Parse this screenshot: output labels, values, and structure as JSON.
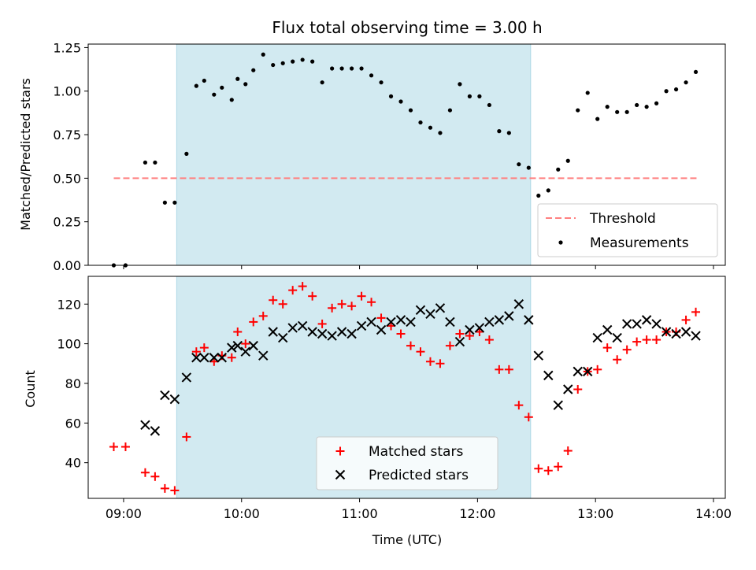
{
  "title": "Flux total observing time = 3.00 h",
  "colors": {
    "shade": "#add8e6",
    "threshold": "#ff8080",
    "measurement": "#000000",
    "matched": "#ff0000",
    "predicted": "#000000"
  },
  "chart_data": [
    {
      "type": "scatter",
      "id": "top",
      "ylabel": "Matched/Predicted stars",
      "xlabel": "",
      "xlim": [
        "08:42",
        "14:06"
      ],
      "ylim": [
        0,
        1.27
      ],
      "x_ticks": [
        "09:00",
        "10:00",
        "11:00",
        "12:00",
        "13:00",
        "14:00"
      ],
      "y_ticks": [
        "0.00",
        "0.25",
        "0.50",
        "0.75",
        "1.00",
        "1.25"
      ],
      "shaded_region": [
        "09:27",
        "12:27"
      ],
      "legend": {
        "position": "lower right",
        "entries": [
          "Threshold",
          "Measurements"
        ]
      },
      "threshold": {
        "name": "Threshold",
        "value": 0.5,
        "x_range": [
          "08:55",
          "13:52"
        ]
      },
      "series": [
        {
          "name": "Measurements",
          "marker": "dot",
          "x": [
            "08:55",
            "09:01",
            "09:11",
            "09:16",
            "09:21",
            "09:26",
            "09:32",
            "09:37",
            "09:41",
            "09:46",
            "09:50",
            "09:55",
            "09:58",
            "10:02",
            "10:06",
            "10:11",
            "10:16",
            "10:21",
            "10:26",
            "10:31",
            "10:36",
            "10:41",
            "10:46",
            "10:51",
            "10:56",
            "11:01",
            "11:06",
            "11:11",
            "11:16",
            "11:21",
            "11:26",
            "11:31",
            "11:36",
            "11:41",
            "11:46",
            "11:51",
            "11:56",
            "12:01",
            "12:06",
            "12:11",
            "12:16",
            "12:21",
            "12:26",
            "12:31",
            "12:36",
            "12:41",
            "12:46",
            "12:51",
            "12:56",
            "13:01",
            "13:06",
            "13:11",
            "13:16",
            "13:21",
            "13:26",
            "13:31",
            "13:36",
            "13:41",
            "13:46",
            "13:51"
          ],
          "values": [
            0.0,
            0.0,
            0.59,
            0.59,
            0.36,
            0.36,
            0.64,
            1.03,
            1.06,
            0.98,
            1.02,
            0.95,
            1.07,
            1.04,
            1.12,
            1.21,
            1.15,
            1.16,
            1.17,
            1.18,
            1.17,
            1.05,
            1.13,
            1.13,
            1.13,
            1.13,
            1.09,
            1.05,
            0.97,
            0.94,
            0.89,
            0.82,
            0.79,
            0.76,
            0.89,
            1.04,
            0.97,
            0.97,
            0.92,
            0.77,
            0.76,
            0.58,
            0.56,
            0.4,
            0.43,
            0.55,
            0.6,
            0.89,
            0.99,
            0.84,
            0.91,
            0.88,
            0.88,
            0.92,
            0.91,
            0.93,
            1.0,
            1.01,
            1.05,
            1.11
          ]
        }
      ]
    },
    {
      "type": "scatter",
      "id": "bottom",
      "ylabel": "Count",
      "xlabel": "Time (UTC)",
      "xlim": [
        "08:42",
        "14:06"
      ],
      "ylim": [
        22,
        134
      ],
      "x_ticks": [
        "09:00",
        "10:00",
        "11:00",
        "12:00",
        "13:00",
        "14:00"
      ],
      "y_ticks": [
        "40",
        "60",
        "80",
        "100",
        "120"
      ],
      "shaded_region": [
        "09:27",
        "12:27"
      ],
      "legend": {
        "position": "lower center",
        "entries": [
          "Matched stars",
          "Predicted stars"
        ]
      },
      "series": [
        {
          "name": "Matched stars",
          "marker": "plus",
          "x": [
            "08:55",
            "09:01",
            "09:11",
            "09:16",
            "09:21",
            "09:26",
            "09:32",
            "09:37",
            "09:41",
            "09:46",
            "09:50",
            "09:55",
            "09:58",
            "10:02",
            "10:06",
            "10:11",
            "10:16",
            "10:21",
            "10:26",
            "10:31",
            "10:36",
            "10:41",
            "10:46",
            "10:51",
            "10:56",
            "11:01",
            "11:06",
            "11:11",
            "11:16",
            "11:21",
            "11:26",
            "11:31",
            "11:36",
            "11:41",
            "11:46",
            "11:51",
            "11:56",
            "12:01",
            "12:06",
            "12:11",
            "12:16",
            "12:21",
            "12:26",
            "12:31",
            "12:36",
            "12:41",
            "12:46",
            "12:51",
            "12:56",
            "13:01",
            "13:06",
            "13:11",
            "13:16",
            "13:21",
            "13:26",
            "13:31",
            "13:36",
            "13:41",
            "13:46",
            "13:51"
          ],
          "values": [
            48,
            48,
            35,
            33,
            27,
            26,
            53,
            96,
            98,
            91,
            94,
            93,
            106,
            100,
            111,
            114,
            122,
            120,
            127,
            129,
            124,
            110,
            118,
            120,
            119,
            124,
            121,
            113,
            109,
            105,
            99,
            96,
            91,
            90,
            99,
            105,
            104,
            106,
            102,
            87,
            87,
            69,
            63,
            37,
            36,
            38,
            46,
            77,
            86,
            87,
            98,
            92,
            97,
            101,
            102,
            102,
            106,
            106,
            112,
            116
          ]
        },
        {
          "name": "Predicted stars",
          "marker": "x",
          "x": [
            "09:11",
            "09:16",
            "09:21",
            "09:26",
            "09:32",
            "09:37",
            "09:41",
            "09:46",
            "09:50",
            "09:55",
            "09:58",
            "10:02",
            "10:06",
            "10:11",
            "10:16",
            "10:21",
            "10:26",
            "10:31",
            "10:36",
            "10:41",
            "10:46",
            "10:51",
            "10:56",
            "11:01",
            "11:06",
            "11:11",
            "11:16",
            "11:21",
            "11:26",
            "11:31",
            "11:36",
            "11:41",
            "11:46",
            "11:51",
            "11:56",
            "12:01",
            "12:06",
            "12:11",
            "12:16",
            "12:21",
            "12:26",
            "12:31",
            "12:36",
            "12:41",
            "12:46",
            "12:51",
            "12:56",
            "13:01",
            "13:06",
            "13:11",
            "13:16",
            "13:21",
            "13:26",
            "13:31",
            "13:36",
            "13:41",
            "13:46",
            "13:51"
          ],
          "values": [
            59,
            56,
            74,
            72,
            83,
            93,
            93,
            93,
            93,
            98,
            99,
            96,
            99,
            94,
            106,
            103,
            108,
            109,
            106,
            105,
            104,
            106,
            105,
            109,
            111,
            107,
            111,
            112,
            111,
            117,
            115,
            118,
            111,
            101,
            107,
            108,
            111,
            112,
            114,
            120,
            112,
            94,
            84,
            69,
            77,
            86,
            86,
            103,
            107,
            103,
            110,
            110,
            112,
            110,
            106,
            105,
            106,
            104
          ]
        }
      ]
    }
  ]
}
